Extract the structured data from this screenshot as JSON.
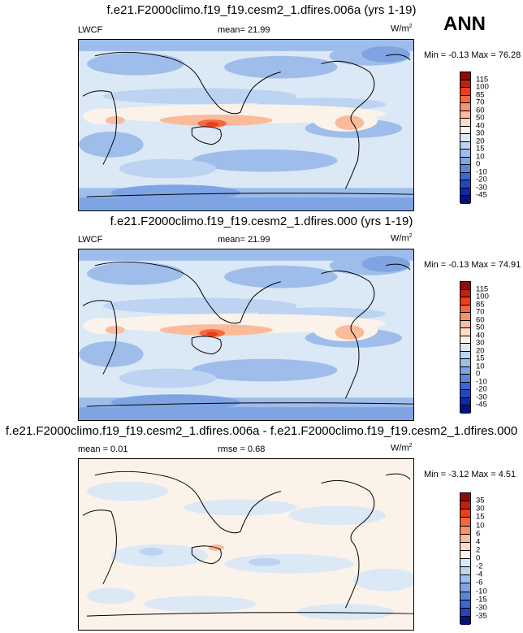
{
  "season": "ANN",
  "units_main": "W/m",
  "units_sup": "2",
  "panels": [
    {
      "title": "f.e21.F2000climo.f19_f19.cesm2_1.dfires.006a (yrs 1-19)",
      "left_label": "LWCF",
      "mid_label": "mean=  21.99",
      "min_max": "Min = -0.13 Max =  76.28"
    },
    {
      "title": "f.e21.F2000climo.f19_f19.cesm2_1.dfires.000 (yrs 1-19)",
      "left_label": "LWCF",
      "mid_label": "mean=  21.99",
      "min_max": "Min = -0.13 Max =  74.91"
    },
    {
      "title": "f.e21.F2000climo.f19_f19.cesm2_1.dfires.006a - f.e21.F2000climo.f19_f19.cesm2_1.dfires.000",
      "left_label": "mean =   0.01",
      "mid_label": "rmse =   0.68",
      "min_max": "Min = -3.12 Max =   4.51"
    }
  ],
  "colorbar_abs": {
    "labels": [
      "115",
      "100",
      "85",
      "70",
      "60",
      "50",
      "40",
      "30",
      "20",
      "15",
      "10",
      "0",
      "-10",
      "-20",
      "-30",
      "-45"
    ],
    "colors": [
      "#8e0b0b",
      "#c2200f",
      "#e8401c",
      "#f3683e",
      "#f6926b",
      "#f9bb9a",
      "#fbdccb",
      "#fbf2ea",
      "#dbe8f6",
      "#bcd3f1",
      "#9fbdeb",
      "#7fa4e3",
      "#5c86da",
      "#3c67cf",
      "#2147c0",
      "#0f28a3",
      "#05137a"
    ]
  },
  "colorbar_diff": {
    "labels": [
      "35",
      "30",
      "15",
      "10",
      "6",
      "4",
      "2",
      "0",
      "-2",
      "-4",
      "-6",
      "-10",
      "-15",
      "-30",
      "-35"
    ],
    "colors": [
      "#8e0b0b",
      "#c2200f",
      "#e8401c",
      "#f3683e",
      "#f6926b",
      "#f9bb9a",
      "#fbdccb",
      "#fbf2ea",
      "#dbe8f6",
      "#bcd3f1",
      "#9fbdeb",
      "#7fa4e3",
      "#5c86da",
      "#3c67cf",
      "#2147c0",
      "#05137a"
    ]
  }
}
